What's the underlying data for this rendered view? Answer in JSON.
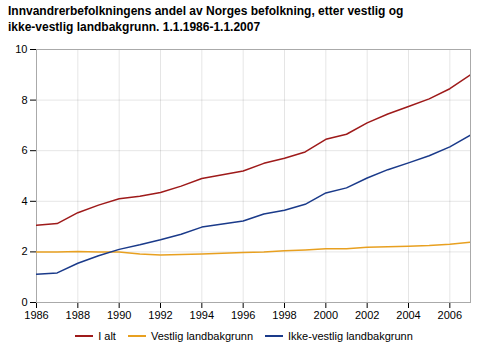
{
  "chart_data": {
    "type": "line",
    "title": "Innvandrerbefolkningens andel av Norges befolkning, etter vestlig og\nikke-vestlig landbakgrunn. 1.1.1986-1.1.2007",
    "x": [
      1986,
      1987,
      1988,
      1989,
      1990,
      1991,
      1992,
      1993,
      1994,
      1995,
      1996,
      1997,
      1998,
      1999,
      2000,
      2001,
      2002,
      2003,
      2004,
      2005,
      2006,
      2007
    ],
    "series": [
      {
        "name": "I alt",
        "color": "#9e1a1a",
        "values": [
          3.05,
          3.12,
          3.55,
          3.85,
          4.1,
          4.2,
          4.35,
          4.6,
          4.9,
          5.05,
          5.2,
          5.5,
          5.7,
          5.95,
          6.45,
          6.65,
          7.1,
          7.45,
          7.75,
          8.05,
          8.45,
          9.0
        ]
      },
      {
        "name": "Vestlig landbakgrunn",
        "color": "#e8a020",
        "values": [
          2.0,
          2.0,
          2.02,
          2.0,
          2.0,
          1.92,
          1.88,
          1.9,
          1.92,
          1.95,
          1.98,
          2.0,
          2.05,
          2.08,
          2.12,
          2.12,
          2.18,
          2.2,
          2.22,
          2.25,
          2.3,
          2.38
        ]
      },
      {
        "name": "Ikke-vestlig landbakgrunn",
        "color": "#1a3a8a",
        "values": [
          1.12,
          1.17,
          1.55,
          1.85,
          2.1,
          2.28,
          2.48,
          2.7,
          2.98,
          3.1,
          3.22,
          3.5,
          3.65,
          3.88,
          4.33,
          4.53,
          4.92,
          5.25,
          5.52,
          5.8,
          6.15,
          6.62
        ]
      }
    ],
    "xlim": [
      1986,
      2007
    ],
    "xticks": [
      1986,
      1988,
      1990,
      1992,
      1994,
      1996,
      1998,
      2000,
      2002,
      2004,
      2006
    ],
    "ylim": [
      0,
      10
    ],
    "yticks": [
      0,
      2,
      4,
      6,
      8,
      10
    ],
    "grid": true,
    "legend": "bottom"
  }
}
